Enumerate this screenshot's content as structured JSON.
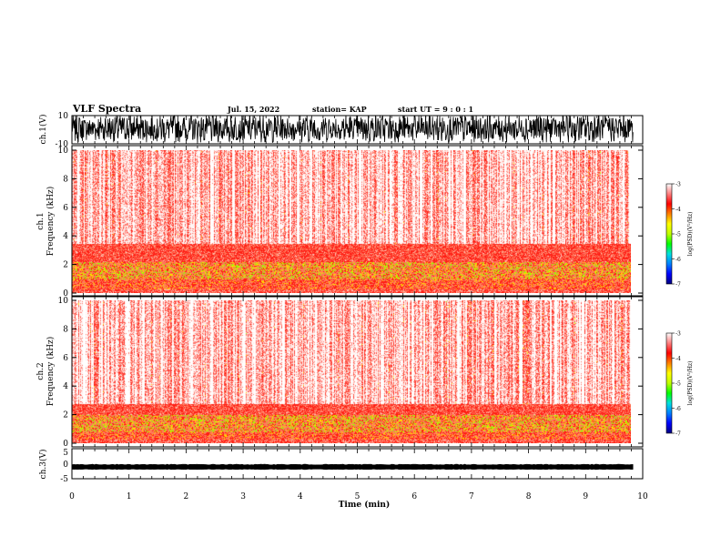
{
  "header": {
    "title": "VLF Spectra",
    "date": "Jul. 15, 2022",
    "station": "station= KAP",
    "start": "start UT =  9 : 0 : 1"
  },
  "colorbar": {
    "label": "log(PSD)(V²/Hz)",
    "ticks": [
      "-3",
      "-4",
      "-5",
      "-6",
      "-7"
    ],
    "range": [
      -7,
      -3
    ],
    "colors": [
      "#000080",
      "#0000ff",
      "#0080ff",
      "#00e0e0",
      "#00ff00",
      "#c0ff00",
      "#ffff00",
      "#ff8000",
      "#ff0000",
      "#ff8080",
      "#ffffff"
    ]
  },
  "chart_data": [
    {
      "type": "line",
      "panel": "ch1-waveform",
      "ylabel": "ch.1(V)",
      "ylim": [
        -10,
        10
      ],
      "yticks": [
        "10",
        "-10"
      ],
      "x_range_min": [
        0,
        9.83
      ],
      "note": "dense noisy waveform, amplitude roughly -8 to +10 V"
    },
    {
      "type": "heatmap",
      "panel": "ch1-spectrogram",
      "ylabel": "ch.1\nFrequency (kHz)",
      "ylim": [
        0,
        10
      ],
      "yticks": [
        "0",
        "2",
        "4",
        "6",
        "8",
        "10"
      ],
      "xlim_min": [
        0,
        9.83
      ],
      "description_bands_kHz": [
        [
          0.3,
          1.0
        ],
        [
          1.0,
          2.2
        ],
        [
          2.2,
          3.5
        ]
      ]
    },
    {
      "type": "heatmap",
      "panel": "ch2-spectrogram",
      "ylabel": "ch.2\nFrequency (kHz)",
      "ylim": [
        0,
        10
      ],
      "yticks": [
        "0",
        "2",
        "4",
        "6",
        "8",
        "10"
      ],
      "xlim_min": [
        0,
        9.83
      ],
      "description_bands_kHz": [
        [
          0.3,
          0.8
        ],
        [
          0.8,
          2.0
        ],
        [
          2.0,
          2.8
        ]
      ]
    },
    {
      "type": "line",
      "panel": "ch3-waveform",
      "ylabel": "ch.3(V)",
      "ylim": [
        -5,
        5
      ],
      "yticks": [
        "5",
        "0",
        "-5"
      ],
      "x_range_min": [
        0,
        9.83
      ],
      "note": "near-constant band around -1 V"
    }
  ],
  "xaxis": {
    "label": "Time (min)",
    "ticks": [
      "0",
      "1",
      "2",
      "3",
      "4",
      "5",
      "6",
      "7",
      "8",
      "9",
      "10"
    ],
    "range": [
      0,
      10
    ]
  }
}
